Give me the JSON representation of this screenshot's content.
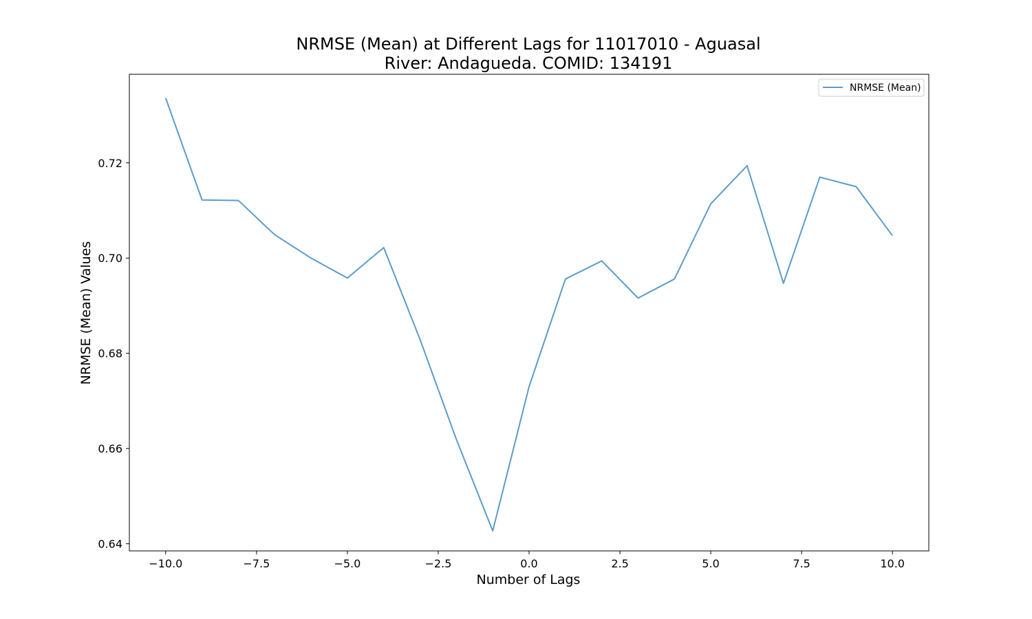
{
  "chart_data": {
    "type": "line",
    "title_line1": "NRMSE (Mean) at Different Lags for 11017010 - Aguasal",
    "title_line2": "River: Andagueda. COMID: 134191",
    "xlabel": "Number of Lags",
    "ylabel": "NRMSE (Mean) Values",
    "xlim": [
      -11,
      11
    ],
    "ylim": [
      0.6385,
      0.7386
    ],
    "xticks": [
      -10.0,
      -7.5,
      -5.0,
      -2.5,
      0.0,
      2.5,
      5.0,
      7.5,
      10.0
    ],
    "xtick_labels": [
      "−10.0",
      "−7.5",
      "−5.0",
      "−2.5",
      "0.0",
      "2.5",
      "5.0",
      "7.5",
      "10.0"
    ],
    "yticks": [
      0.64,
      0.66,
      0.68,
      0.7,
      0.72
    ],
    "ytick_labels": [
      "0.64",
      "0.66",
      "0.68",
      "0.70",
      "0.72"
    ],
    "legend_placement": "top-right",
    "grid": false,
    "series": [
      {
        "name": "NRMSE (Mean)",
        "color": "#5b9bc9",
        "x": [
          -10,
          -9,
          -8,
          -7,
          -6,
          -5,
          -4,
          -3,
          -2,
          -1,
          0,
          1,
          2,
          3,
          4,
          5,
          6,
          7,
          8,
          9,
          10
        ],
        "y": [
          0.7336,
          0.7122,
          0.7121,
          0.7049,
          0.7,
          0.6958,
          0.7022,
          0.6829,
          0.6619,
          0.6427,
          0.673,
          0.6956,
          0.6994,
          0.6916,
          0.6956,
          0.7114,
          0.7194,
          0.6947,
          0.717,
          0.715,
          0.7047
        ]
      }
    ]
  }
}
